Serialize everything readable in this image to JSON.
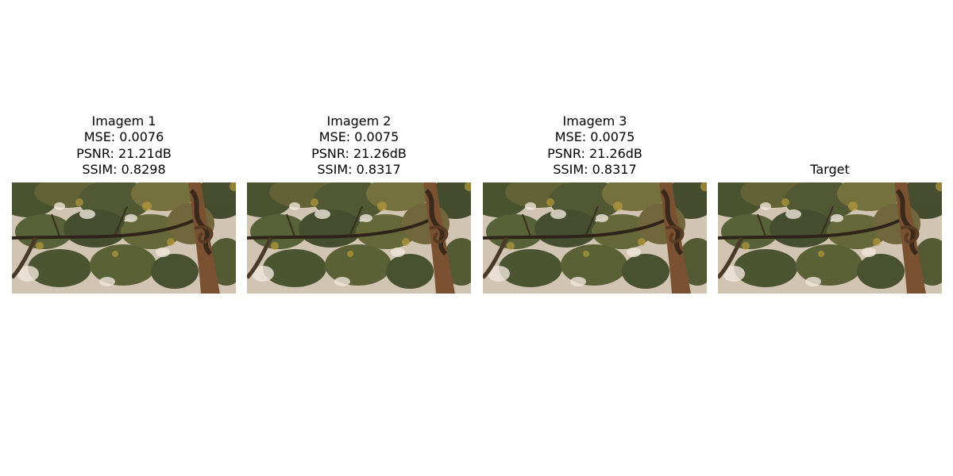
{
  "figure": {
    "panels": [
      {
        "title": "Imagem 1",
        "mse": "MSE: 0.0076",
        "psnr": "PSNR: 21.21dB",
        "ssim": "SSIM: 0.8298"
      },
      {
        "title": "Imagem 2",
        "mse": "MSE: 0.0075",
        "psnr": "PSNR: 21.26dB",
        "ssim": "SSIM: 0.8317"
      },
      {
        "title": "Imagem 3",
        "mse": "MSE: 0.0075",
        "psnr": "PSNR: 21.26dB",
        "ssim": "SSIM: 0.8317"
      },
      {
        "title": "Target"
      }
    ]
  }
}
